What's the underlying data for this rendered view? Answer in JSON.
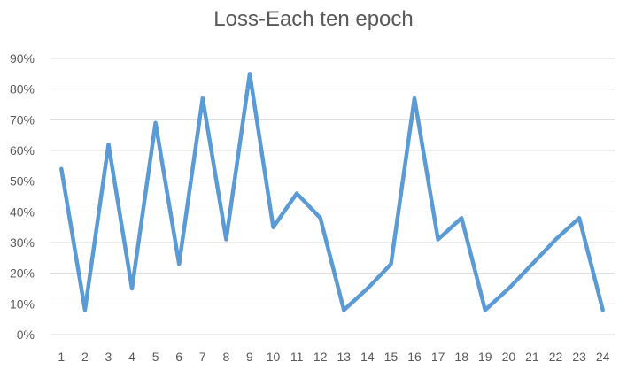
{
  "chart_data": {
    "type": "line",
    "title": "Loss-Each ten epoch",
    "x": [
      "1",
      "2",
      "3",
      "4",
      "5",
      "6",
      "7",
      "8",
      "9",
      "10",
      "11",
      "12",
      "13",
      "14",
      "15",
      "16",
      "17",
      "18",
      "19",
      "20",
      "21",
      "22",
      "23",
      "24"
    ],
    "series": [
      {
        "values": [
          54,
          8,
          62,
          15,
          69,
          23,
          77,
          31,
          85,
          35,
          46,
          38,
          8,
          15,
          23,
          77,
          31,
          38,
          8,
          15,
          23,
          31,
          38,
          8
        ],
        "color": "#5b9bd5"
      }
    ],
    "ylim": [
      0,
      90
    ],
    "yticks": [
      0,
      10,
      20,
      30,
      40,
      50,
      60,
      70,
      80,
      90
    ],
    "ytick_labels": [
      "0%",
      "10%",
      "20%",
      "30%",
      "40%",
      "50%",
      "60%",
      "70%",
      "80%",
      "90%"
    ],
    "grid": true,
    "legend": "none"
  }
}
